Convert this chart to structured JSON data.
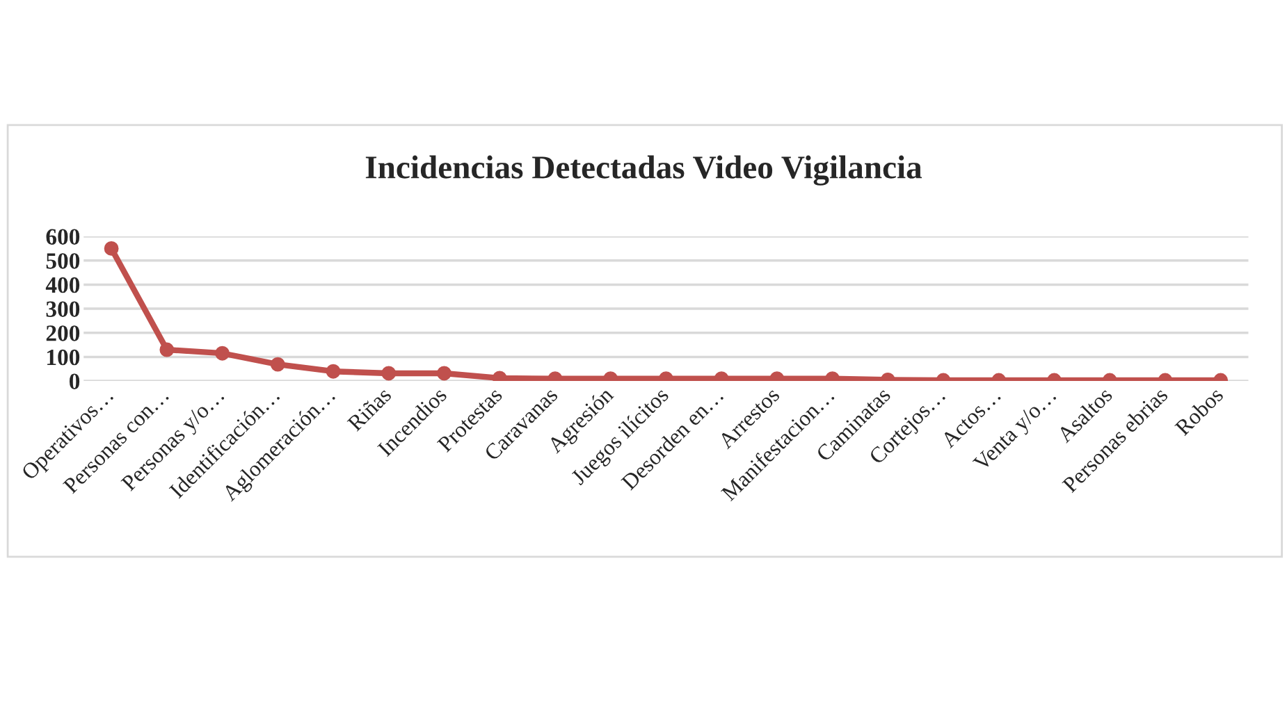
{
  "chart_data": {
    "type": "line",
    "title": "Incidencias Detectadas Video Vigilancia",
    "categories": [
      "Operativos…",
      "Personas con…",
      "Personas y/o…",
      "Identificación…",
      "Aglomeración…",
      "Riñas",
      "Incendios",
      "Protestas",
      "Caravanas",
      "Agresión",
      "Juegos ilícitos",
      "Desorden en…",
      "Arrestos",
      "Manifestacion…",
      "Caminatas",
      "Cortejos…",
      "Actos…",
      "Venta y/o…",
      "Asaltos",
      "Personas ebrias",
      "Robos"
    ],
    "series": [
      {
        "color": "#c0504d",
        "values": [
          550,
          130,
          115,
          69,
          40,
          32,
          32,
          12,
          10,
          10,
          10,
          10,
          10,
          10,
          5,
          3,
          3,
          3,
          3,
          3,
          3
        ]
      }
    ],
    "ylim": [
      0,
      600
    ],
    "yticks": [
      0,
      100,
      200,
      300,
      400,
      500,
      600
    ],
    "grid": "y",
    "marker": "circle",
    "line_style": "solid"
  }
}
